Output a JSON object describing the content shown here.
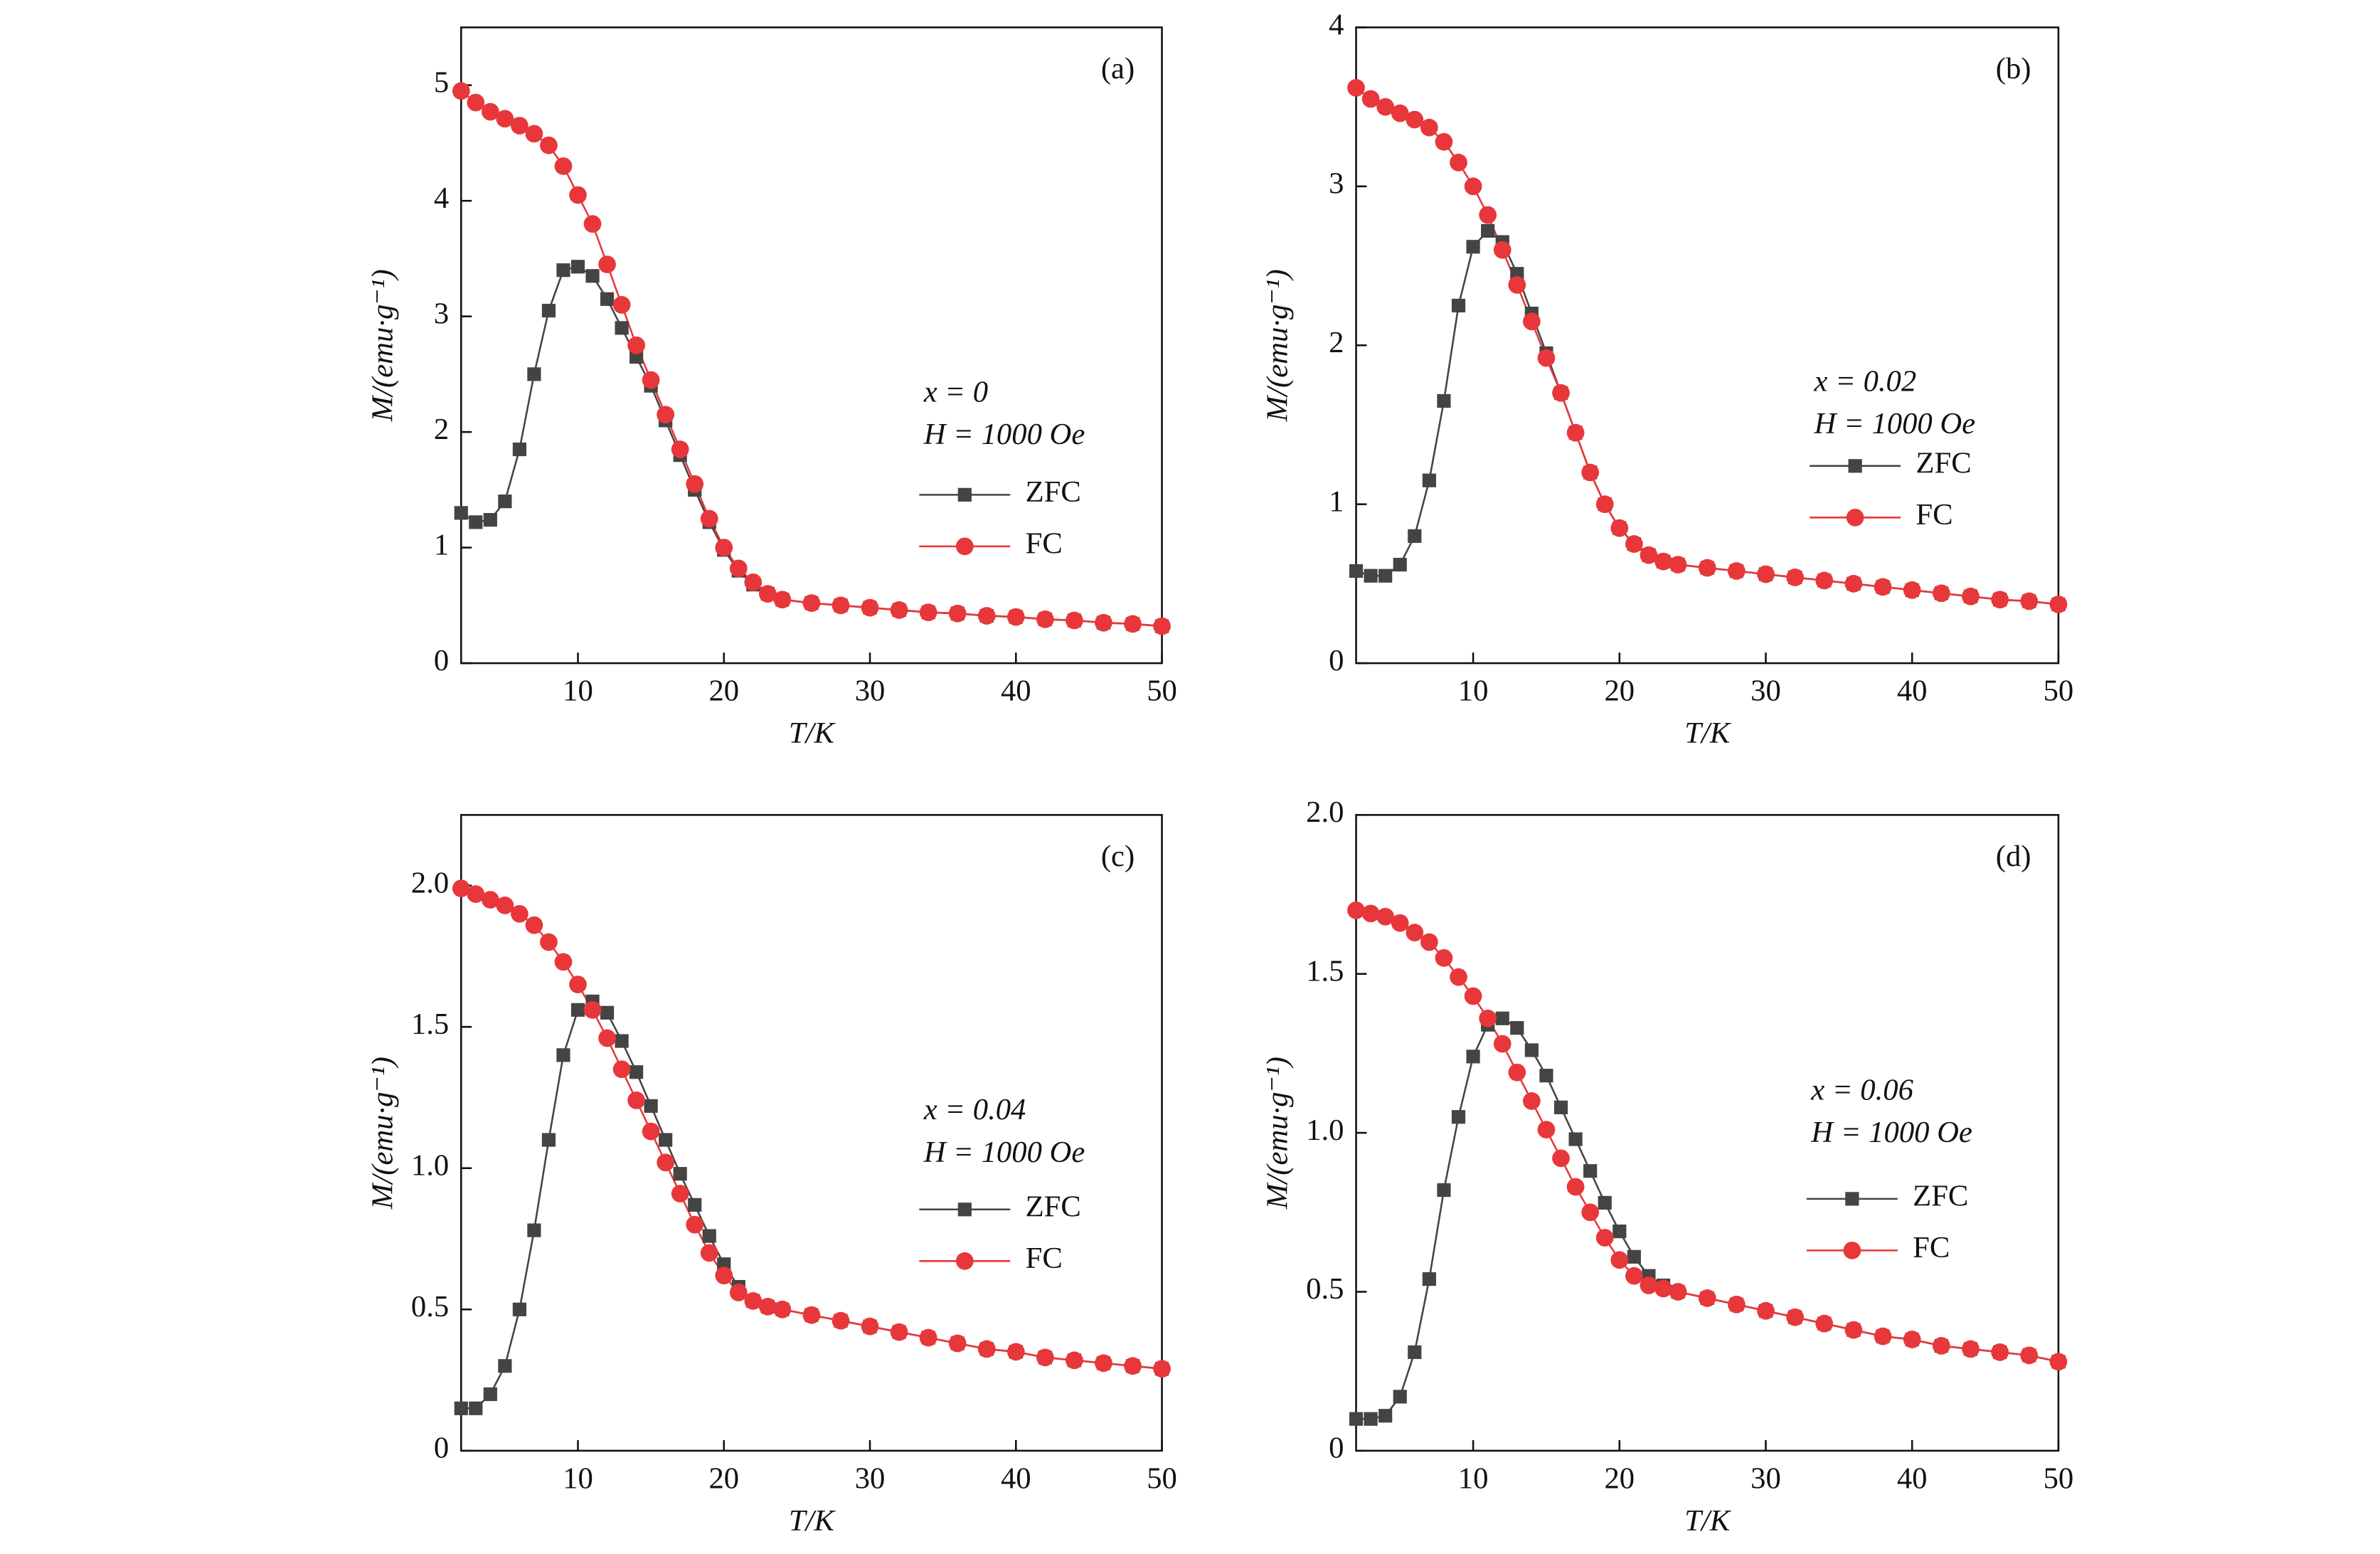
{
  "chart_data": [
    {
      "type": "line",
      "label": "(a)",
      "annotations": [
        "x = 0",
        "H = 1000 Oe"
      ],
      "xlabel": "T/K",
      "ylabel": "M/(emu·g⁻¹)",
      "x": [
        2,
        3,
        4,
        5,
        6,
        7,
        8,
        9,
        10,
        11,
        12,
        13,
        14,
        15,
        16,
        17,
        18,
        19,
        20,
        21,
        22,
        23,
        24,
        26,
        28,
        30,
        32,
        34,
        36,
        38,
        40,
        42,
        44,
        46,
        48,
        50
      ],
      "xlim": [
        2,
        50
      ],
      "xticks": [
        10,
        20,
        30,
        40,
        50
      ],
      "ylim": [
        0,
        5.5
      ],
      "yticks": [
        0,
        1,
        2,
        3,
        4,
        5
      ],
      "series": [
        {
          "name": "ZFC",
          "color": "#444444",
          "marker": "square",
          "values": [
            1.3,
            1.22,
            1.24,
            1.4,
            1.85,
            2.5,
            3.05,
            3.4,
            3.43,
            3.35,
            3.15,
            2.9,
            2.65,
            2.4,
            2.1,
            1.8,
            1.5,
            1.22,
            0.98,
            0.8,
            0.68,
            0.6,
            0.55,
            0.52,
            0.5,
            0.48,
            0.46,
            0.44,
            0.43,
            0.41,
            0.4,
            0.38,
            0.37,
            0.35,
            0.34,
            0.32
          ]
        },
        {
          "name": "FC",
          "color": "#e8373a",
          "marker": "circle",
          "values": [
            4.95,
            4.85,
            4.77,
            4.71,
            4.65,
            4.58,
            4.48,
            4.3,
            4.05,
            3.8,
            3.45,
            3.1,
            2.75,
            2.45,
            2.15,
            1.85,
            1.55,
            1.25,
            1.0,
            0.82,
            0.7,
            0.6,
            0.55,
            0.52,
            0.5,
            0.48,
            0.46,
            0.44,
            0.43,
            0.41,
            0.4,
            0.38,
            0.37,
            0.35,
            0.34,
            0.32
          ]
        }
      ]
    },
    {
      "type": "line",
      "label": "(b)",
      "annotations": [
        "x = 0.02",
        "H = 1000 Oe"
      ],
      "xlabel": "T/K",
      "ylabel": "M/(emu·g⁻¹)",
      "x": [
        2,
        3,
        4,
        5,
        6,
        7,
        8,
        9,
        10,
        11,
        12,
        13,
        14,
        15,
        16,
        17,
        18,
        19,
        20,
        21,
        22,
        23,
        24,
        26,
        28,
        30,
        32,
        34,
        36,
        38,
        40,
        42,
        44,
        46,
        48,
        50
      ],
      "xlim": [
        2,
        50
      ],
      "xticks": [
        10,
        20,
        30,
        40,
        50
      ],
      "ylim": [
        0,
        4
      ],
      "yticks": [
        0,
        1,
        2,
        3,
        4
      ],
      "series": [
        {
          "name": "ZFC",
          "color": "#444444",
          "marker": "square",
          "values": [
            0.58,
            0.55,
            0.55,
            0.62,
            0.8,
            1.15,
            1.65,
            2.25,
            2.62,
            2.72,
            2.65,
            2.45,
            2.2,
            1.95,
            1.7,
            1.45,
            1.2,
            1.0,
            0.85,
            0.75,
            0.68,
            0.64,
            0.62,
            0.6,
            0.58,
            0.56,
            0.54,
            0.52,
            0.5,
            0.48,
            0.46,
            0.44,
            0.42,
            0.4,
            0.39,
            0.37
          ]
        },
        {
          "name": "FC",
          "color": "#e8373a",
          "marker": "circle",
          "values": [
            3.62,
            3.55,
            3.5,
            3.46,
            3.42,
            3.37,
            3.28,
            3.15,
            3.0,
            2.82,
            2.6,
            2.38,
            2.15,
            1.92,
            1.7,
            1.45,
            1.2,
            1.0,
            0.85,
            0.75,
            0.68,
            0.64,
            0.62,
            0.6,
            0.58,
            0.56,
            0.54,
            0.52,
            0.5,
            0.48,
            0.46,
            0.44,
            0.42,
            0.4,
            0.39,
            0.37
          ]
        }
      ]
    },
    {
      "type": "line",
      "label": "(c)",
      "annotations": [
        "x = 0.04",
        "H = 1000 Oe"
      ],
      "xlabel": "T/K",
      "ylabel": "M/(emu·g⁻¹)",
      "x": [
        2,
        3,
        4,
        5,
        6,
        7,
        8,
        9,
        10,
        11,
        12,
        13,
        14,
        15,
        16,
        17,
        18,
        19,
        20,
        21,
        22,
        23,
        24,
        26,
        28,
        30,
        32,
        34,
        36,
        38,
        40,
        42,
        44,
        46,
        48,
        50
      ],
      "xlim": [
        2,
        50
      ],
      "xticks": [
        10,
        20,
        30,
        40,
        50
      ],
      "ylim": [
        0,
        2.25
      ],
      "yticks": [
        0,
        0.5,
        {
          "value": 1,
          "label": "1.0"
        },
        1.5,
        {
          "value": 2,
          "label": "2.0"
        }
      ],
      "series": [
        {
          "name": "ZFC",
          "color": "#444444",
          "marker": "square",
          "values": [
            0.15,
            0.15,
            0.2,
            0.3,
            0.5,
            0.78,
            1.1,
            1.4,
            1.56,
            1.59,
            1.55,
            1.45,
            1.34,
            1.22,
            1.1,
            0.98,
            0.87,
            0.76,
            0.66,
            0.58,
            0.53,
            0.51,
            0.5,
            0.48,
            0.46,
            0.44,
            0.42,
            0.4,
            0.38,
            0.36,
            0.35,
            0.33,
            0.32,
            0.31,
            0.3,
            0.29
          ]
        },
        {
          "name": "FC",
          "color": "#e8373a",
          "marker": "circle",
          "values": [
            1.99,
            1.97,
            1.95,
            1.93,
            1.9,
            1.86,
            1.8,
            1.73,
            1.65,
            1.56,
            1.46,
            1.35,
            1.24,
            1.13,
            1.02,
            0.91,
            0.8,
            0.7,
            0.62,
            0.56,
            0.53,
            0.51,
            0.5,
            0.48,
            0.46,
            0.44,
            0.42,
            0.4,
            0.38,
            0.36,
            0.35,
            0.33,
            0.32,
            0.31,
            0.3,
            0.29
          ]
        }
      ]
    },
    {
      "type": "line",
      "label": "(d)",
      "annotations": [
        "x = 0.06",
        "H = 1000 Oe"
      ],
      "xlabel": "T/K",
      "ylabel": "M/(emu·g⁻¹)",
      "x": [
        2,
        3,
        4,
        5,
        6,
        7,
        8,
        9,
        10,
        11,
        12,
        13,
        14,
        15,
        16,
        17,
        18,
        19,
        20,
        21,
        22,
        23,
        24,
        26,
        28,
        30,
        32,
        34,
        36,
        38,
        40,
        42,
        44,
        46,
        48,
        50
      ],
      "xlim": [
        2,
        50
      ],
      "xticks": [
        10,
        20,
        30,
        40,
        50
      ],
      "ylim": [
        0,
        2
      ],
      "yticks": [
        0,
        0.5,
        {
          "value": 1,
          "label": "1.0"
        },
        1.5,
        {
          "value": 2,
          "label": "2.0"
        }
      ],
      "series": [
        {
          "name": "ZFC",
          "color": "#444444",
          "marker": "square",
          "values": [
            0.1,
            0.1,
            0.11,
            0.17,
            0.31,
            0.54,
            0.82,
            1.05,
            1.24,
            1.34,
            1.36,
            1.33,
            1.26,
            1.18,
            1.08,
            0.98,
            0.88,
            0.78,
            0.69,
            0.61,
            0.55,
            0.52,
            0.5,
            0.48,
            0.46,
            0.44,
            0.42,
            0.4,
            0.38,
            0.36,
            0.35,
            0.33,
            0.32,
            0.31,
            0.3,
            0.28
          ]
        },
        {
          "name": "FC",
          "color": "#e8373a",
          "marker": "circle",
          "values": [
            1.7,
            1.69,
            1.68,
            1.66,
            1.63,
            1.6,
            1.55,
            1.49,
            1.43,
            1.36,
            1.28,
            1.19,
            1.1,
            1.01,
            0.92,
            0.83,
            0.75,
            0.67,
            0.6,
            0.55,
            0.52,
            0.51,
            0.5,
            0.48,
            0.46,
            0.44,
            0.42,
            0.4,
            0.38,
            0.36,
            0.35,
            0.33,
            0.32,
            0.31,
            0.3,
            0.28
          ]
        }
      ]
    }
  ]
}
